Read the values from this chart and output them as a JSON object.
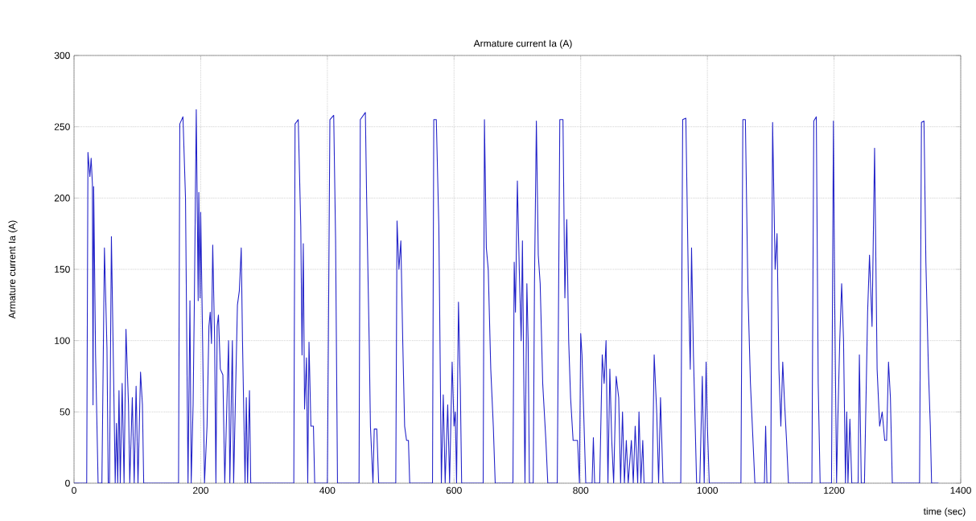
{
  "chart_data": {
    "type": "line",
    "title": "Armature current Ia (A)",
    "xlabel": "time (sec)",
    "ylabel": "Armature current Ia (A)",
    "xlim": [
      0,
      1400
    ],
    "ylim": [
      0,
      300
    ],
    "xticks": [
      0,
      200,
      400,
      600,
      800,
      1000,
      1200,
      1400
    ],
    "yticks": [
      0,
      50,
      100,
      150,
      200,
      250,
      300
    ],
    "grid": true,
    "series": [
      {
        "color": "#2020c8",
        "x": [
          0,
          20,
          22,
          25,
          27,
          29,
          30,
          31,
          34,
          38,
          44,
          48,
          52,
          54,
          56,
          59,
          63,
          65,
          67,
          69,
          71,
          73,
          76,
          79,
          82,
          86,
          88,
          92,
          95,
          98,
          101,
          105,
          108,
          110,
          165,
          167,
          172,
          176,
          180,
          183,
          185,
          188,
          190,
          193,
          196,
          197,
          199,
          200,
          203,
          206,
          210,
          213,
          215,
          217,
          219,
          222,
          224,
          226,
          228,
          231,
          235,
          238,
          244,
          246,
          250,
          252,
          258,
          261,
          264,
          266,
          270,
          272,
          274,
          277,
          279,
          347,
          349,
          354,
          358,
          360,
          362,
          364,
          367,
          369,
          371,
          374,
          378,
          380,
          400,
          404,
          410,
          413,
          416,
          450,
          452,
          460,
          462,
          466,
          468,
          472,
          474,
          478,
          481,
          508,
          510,
          513,
          516,
          519,
          522,
          525,
          528,
          530,
          566,
          568,
          572,
          576,
          580,
          583,
          586,
          590,
          593,
          597,
          600,
          602,
          604,
          607,
          610,
          612,
          646,
          648,
          651,
          654,
          658,
          662,
          665,
          693,
          695,
          697,
          700,
          703,
          706,
          708,
          710,
          712,
          715,
          717,
          719,
          725,
          727,
          730,
          733,
          736,
          740,
          745,
          748,
          763,
          767,
          772,
          775,
          778,
          781,
          784,
          788,
          795,
          798,
          800,
          802,
          806,
          808,
          818,
          820,
          822,
          830,
          834,
          837,
          840,
          843,
          846,
          849,
          852,
          856,
          860,
          863,
          866,
          869,
          872,
          875,
          880,
          883,
          886,
          890,
          892,
          895,
          898,
          900,
          913,
          916,
          920,
          923,
          926,
          930,
          936,
          958,
          961,
          966,
          970,
          973,
          975,
          978,
          983,
          988,
          992,
          995,
          998,
          1000,
          1003,
          1053,
          1056,
          1060,
          1064,
          1068,
          1072,
          1075,
          1090,
          1092,
          1094,
          1100,
          1103,
          1107,
          1110,
          1113,
          1116,
          1119,
          1122,
          1125,
          1128,
          1165,
          1168,
          1172,
          1175,
          1178,
          1196,
          1199,
          1201,
          1204,
          1206,
          1209,
          1212,
          1215,
          1218,
          1220,
          1222,
          1225,
          1228,
          1238,
          1240,
          1243,
          1248,
          1253,
          1256,
          1260,
          1264,
          1268,
          1272,
          1276,
          1280,
          1283,
          1286,
          1289,
          1292,
          1335,
          1338,
          1342,
          1345,
          1349,
          1352,
          1354,
          1365
        ],
        "values": [
          0,
          0,
          232,
          215,
          228,
          210,
          55,
          208,
          90,
          0,
          0,
          165,
          95,
          0,
          0,
          173,
          60,
          0,
          42,
          0,
          65,
          0,
          70,
          0,
          108,
          55,
          0,
          60,
          0,
          68,
          0,
          78,
          55,
          0,
          0,
          252,
          257,
          200,
          0,
          128,
          0,
          55,
          128,
          262,
          128,
          204,
          130,
          190,
          100,
          0,
          40,
          110,
          120,
          98,
          167,
          100,
          0,
          110,
          118,
          80,
          76,
          0,
          100,
          0,
          100,
          0,
          125,
          135,
          165,
          100,
          0,
          60,
          0,
          65,
          0,
          0,
          252,
          255,
          180,
          90,
          168,
          52,
          88,
          0,
          99,
          40,
          40,
          0,
          0,
          255,
          258,
          170,
          0,
          0,
          255,
          260,
          200,
          100,
          40,
          0,
          38,
          38,
          0,
          0,
          184,
          150,
          170,
          100,
          40,
          30,
          30,
          0,
          0,
          255,
          255,
          180,
          0,
          62,
          0,
          55,
          0,
          85,
          40,
          50,
          0,
          127,
          65,
          0,
          0,
          255,
          165,
          150,
          80,
          40,
          0,
          0,
          155,
          120,
          212,
          150,
          100,
          170,
          80,
          0,
          140,
          100,
          0,
          0,
          140,
          254,
          160,
          140,
          70,
          30,
          0,
          0,
          255,
          255,
          130,
          185,
          100,
          60,
          30,
          30,
          0,
          105,
          90,
          30,
          0,
          0,
          32,
          0,
          0,
          90,
          70,
          100,
          0,
          80,
          30,
          0,
          75,
          60,
          0,
          50,
          0,
          30,
          0,
          30,
          0,
          40,
          0,
          50,
          0,
          30,
          0,
          0,
          90,
          50,
          0,
          60,
          0,
          0,
          0,
          255,
          256,
          140,
          80,
          165,
          90,
          0,
          0,
          75,
          0,
          85,
          40,
          0,
          0,
          255,
          255,
          135,
          70,
          30,
          0,
          0,
          40,
          0,
          0,
          253,
          150,
          175,
          80,
          40,
          85,
          55,
          30,
          0,
          0,
          254,
          257,
          70,
          0,
          0,
          254,
          130,
          0,
          45,
          100,
          140,
          100,
          0,
          50,
          0,
          45,
          0,
          0,
          90,
          0,
          0,
          120,
          160,
          110,
          235,
          80,
          40,
          50,
          30,
          30,
          85,
          60,
          0,
          0,
          253,
          254,
          155,
          80,
          40,
          0,
          0
        ]
      }
    ]
  }
}
